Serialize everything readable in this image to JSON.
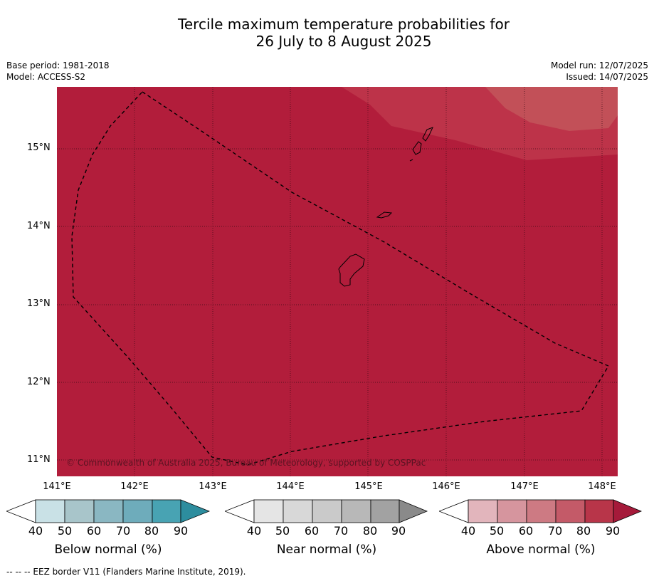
{
  "title": {
    "line1": "Tercile maximum temperature probabilities for",
    "line2": "26 July to 8 August 2025"
  },
  "meta": {
    "base_period": "Base period: 1981-2018",
    "model": "Model: ACCESS-S2",
    "model_run": "Model run: 12/07/2025",
    "issued": "Issued: 14/07/2025"
  },
  "map": {
    "copyright": "© Commonwealth of Australia 2025, Bureau of Meteorology, supported by COSPPac",
    "fill_color": "#b21d3b",
    "lat_labels": [
      "15°N",
      "14°N",
      "13°N",
      "12°N",
      "11°N"
    ],
    "lon_labels": [
      "141°E",
      "142°E",
      "143°E",
      "144°E",
      "145°E",
      "146°E",
      "147°E",
      "148°E"
    ]
  },
  "colorbars": [
    {
      "label": "Below normal (%)",
      "ticks": [
        "40",
        "50",
        "60",
        "70",
        "80",
        "90"
      ],
      "colors": [
        "#ffffff",
        "#c9e1e6",
        "#a8c5ca",
        "#8ab7c2",
        "#6eacbb",
        "#48a3b3",
        "#2d8d9e"
      ]
    },
    {
      "label": "Near normal (%)",
      "ticks": [
        "40",
        "50",
        "60",
        "70",
        "80",
        "90"
      ],
      "colors": [
        "#ffffff",
        "#e5e5e5",
        "#d8d8d8",
        "#cacaca",
        "#b8b8b8",
        "#a2a2a2",
        "#8a8a8a"
      ]
    },
    {
      "label": "Above normal (%)",
      "ticks": [
        "40",
        "50",
        "60",
        "70",
        "80",
        "90"
      ],
      "colors": [
        "#ffffff",
        "#e2b5bc",
        "#d6959e",
        "#cd7a83",
        "#c45a68",
        "#b83549",
        "#a51a3a"
      ]
    }
  ],
  "footer": "--  --  -- EEZ border V11 (Flanders Marine Institute, 2019)."
}
